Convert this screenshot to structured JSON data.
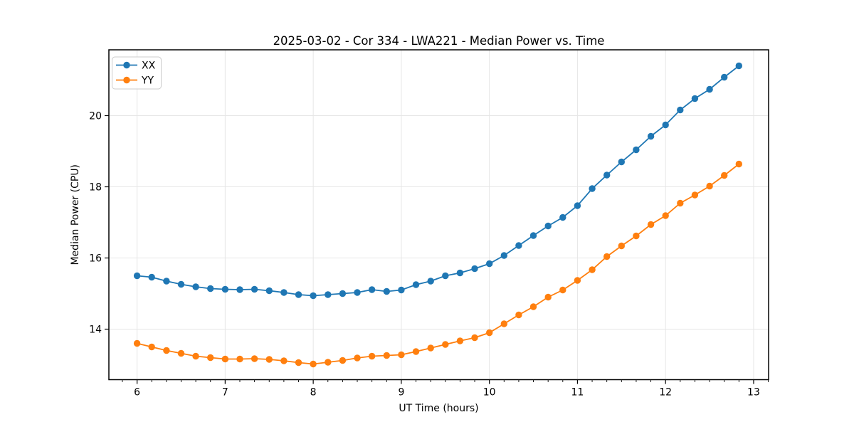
{
  "figure": {
    "title": "2025-03-02 - Cor 334 - LWA221 - Median Power vs. Time",
    "xlabel": "UT Time (hours)",
    "ylabel": "Median Power (CPU)"
  },
  "legend": {
    "position": "upper-left",
    "items": [
      {
        "label": "XX",
        "color": "#1f77b4"
      },
      {
        "label": "YY",
        "color": "#ff7f0e"
      }
    ]
  },
  "chart_data": {
    "type": "line",
    "title": "2025-03-02 - Cor 334 - LWA221 - Median Power vs. Time",
    "xlabel": "UT Time (hours)",
    "ylabel": "Median Power (CPU)",
    "grid": true,
    "legend_position": "upper left",
    "xlim": [
      5.68,
      13.17
    ],
    "ylim": [
      12.58,
      21.85
    ],
    "xticks": [
      6,
      7,
      8,
      9,
      10,
      11,
      12,
      13
    ],
    "yticks": [
      14,
      16,
      18,
      20
    ],
    "x_minor_tick_step": 0.16667,
    "colors": {
      "grid": "#e6e6e6",
      "spine": "#000000",
      "background": "#ffffff"
    },
    "x": [
      6.0,
      6.1667,
      6.3333,
      6.5,
      6.6667,
      6.8333,
      7.0,
      7.1667,
      7.3333,
      7.5,
      7.6667,
      7.8333,
      8.0,
      8.1667,
      8.3333,
      8.5,
      8.6667,
      8.8333,
      9.0,
      9.1667,
      9.3333,
      9.5,
      9.6667,
      9.8333,
      10.0,
      10.1667,
      10.3333,
      10.5,
      10.6667,
      10.8333,
      11.0,
      11.1667,
      11.3333,
      11.5,
      11.6667,
      11.8333,
      12.0,
      12.1667,
      12.3333,
      12.5,
      12.6667,
      12.8333
    ],
    "series": [
      {
        "name": "XX",
        "color": "#1f77b4",
        "marker": "circle",
        "values": [
          15.5,
          15.46,
          15.35,
          15.26,
          15.19,
          15.14,
          15.12,
          15.11,
          15.12,
          15.08,
          15.03,
          14.97,
          14.94,
          14.97,
          15.0,
          15.03,
          15.11,
          15.06,
          15.1,
          15.25,
          15.35,
          15.5,
          15.58,
          15.7,
          15.84,
          16.07,
          16.35,
          16.63,
          16.9,
          17.14,
          17.47,
          17.95,
          18.33,
          18.7,
          19.04,
          19.42,
          19.74,
          20.16,
          20.48,
          20.74,
          21.08,
          21.4
        ]
      },
      {
        "name": "YY",
        "color": "#ff7f0e",
        "marker": "circle",
        "values": [
          13.6,
          13.5,
          13.4,
          13.32,
          13.24,
          13.2,
          13.16,
          13.16,
          13.17,
          13.15,
          13.11,
          13.06,
          13.02,
          13.07,
          13.12,
          13.19,
          13.24,
          13.26,
          13.28,
          13.37,
          13.47,
          13.57,
          13.67,
          13.76,
          13.9,
          14.15,
          14.4,
          14.63,
          14.9,
          15.1,
          15.37,
          15.67,
          16.04,
          16.34,
          16.62,
          16.94,
          17.19,
          17.54,
          17.77,
          18.02,
          18.32,
          18.64
        ]
      }
    ]
  }
}
